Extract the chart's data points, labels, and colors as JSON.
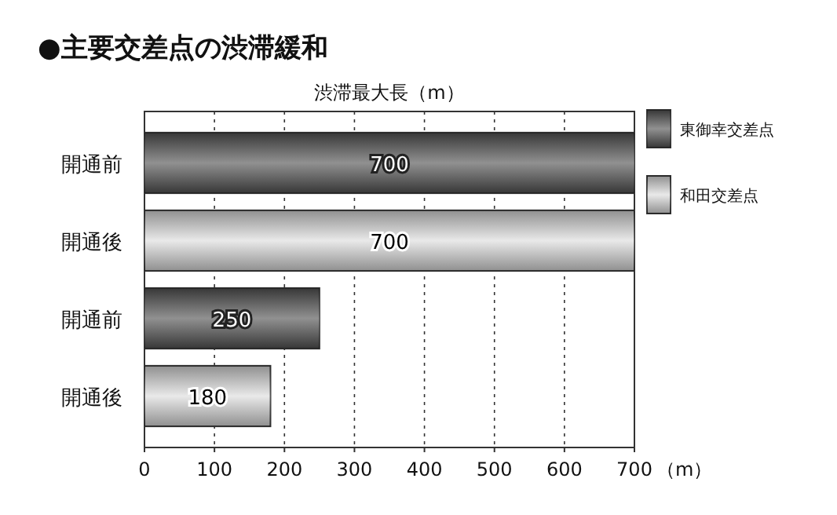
{
  "chart_data": {
    "type": "bar",
    "orientation": "horizontal",
    "title": "●主要交差点の渋滞緩和",
    "xlabel": "渋滞最大長（m）",
    "categories": [
      "開通前",
      "開通後",
      "開通前",
      "開通後"
    ],
    "series": [
      {
        "name": "東御幸交差点",
        "color": "#555555",
        "values": [
          700,
          null,
          250,
          null
        ]
      },
      {
        "name": "和田交差点",
        "color": "#dddddd",
        "values": [
          null,
          700,
          null,
          180
        ]
      }
    ],
    "xlim": [
      0,
      700
    ],
    "xticks": [
      0,
      100,
      200,
      300,
      400,
      500,
      600,
      700
    ],
    "grid": "x",
    "legend": "right",
    "data_labels": true,
    "annotations": [
      "（m）"
    ]
  }
}
